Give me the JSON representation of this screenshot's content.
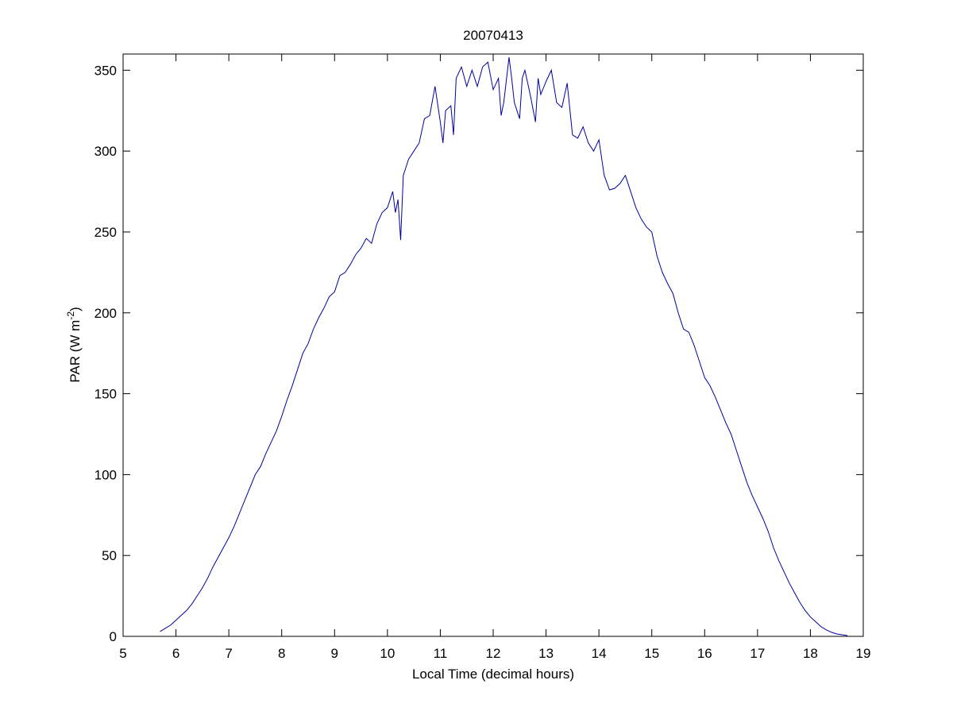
{
  "chart_data": {
    "type": "line",
    "title": "20070413",
    "xlabel": "Local Time (decimal hours)",
    "ylabel": [
      "PAR (W m",
      "-2",
      ")"
    ],
    "color": "#0000a0",
    "xlim": [
      5,
      19
    ],
    "xticks": [
      5,
      6,
      7,
      8,
      9,
      10,
      11,
      12,
      13,
      14,
      15,
      16,
      17,
      18,
      19
    ],
    "ylim": [
      0,
      360
    ],
    "yticks": [
      0,
      50,
      100,
      150,
      200,
      250,
      300,
      350
    ],
    "x": [
      5.7,
      5.8,
      5.9,
      6.0,
      6.1,
      6.2,
      6.3,
      6.4,
      6.5,
      6.6,
      6.7,
      6.8,
      6.9,
      7.0,
      7.1,
      7.2,
      7.3,
      7.4,
      7.5,
      7.6,
      7.7,
      7.8,
      7.9,
      8.0,
      8.1,
      8.2,
      8.3,
      8.4,
      8.5,
      8.6,
      8.7,
      8.8,
      8.9,
      9.0,
      9.1,
      9.2,
      9.3,
      9.4,
      9.5,
      9.6,
      9.7,
      9.8,
      9.9,
      10.0,
      10.1,
      10.15,
      10.2,
      10.25,
      10.3,
      10.4,
      10.5,
      10.6,
      10.7,
      10.8,
      10.9,
      11.0,
      11.05,
      11.1,
      11.2,
      11.25,
      11.3,
      11.4,
      11.5,
      11.6,
      11.7,
      11.8,
      11.9,
      12.0,
      12.1,
      12.15,
      12.2,
      12.3,
      12.35,
      12.4,
      12.5,
      12.55,
      12.6,
      12.7,
      12.8,
      12.85,
      12.9,
      13.0,
      13.1,
      13.2,
      13.3,
      13.4,
      13.5,
      13.6,
      13.7,
      13.8,
      13.9,
      14.0,
      14.1,
      14.2,
      14.3,
      14.4,
      14.5,
      14.6,
      14.7,
      14.8,
      14.9,
      15.0,
      15.1,
      15.2,
      15.3,
      15.4,
      15.5,
      15.6,
      15.7,
      15.8,
      15.9,
      16.0,
      16.1,
      16.2,
      16.3,
      16.4,
      16.5,
      16.6,
      16.7,
      16.8,
      16.9,
      17.0,
      17.1,
      17.2,
      17.3,
      17.4,
      17.5,
      17.6,
      17.7,
      17.8,
      17.9,
      18.0,
      18.1,
      18.2,
      18.3,
      18.4,
      18.5,
      18.6,
      18.7
    ],
    "values": [
      3,
      5,
      7,
      10,
      13,
      16,
      20,
      25,
      30,
      36,
      43,
      49,
      55,
      61,
      68,
      76,
      84,
      92,
      100,
      105,
      113,
      120,
      127,
      136,
      146,
      155,
      165,
      175,
      181,
      190,
      197,
      203,
      210,
      213,
      223,
      225,
      230,
      236,
      240,
      246,
      243,
      255,
      262,
      265,
      275,
      262,
      270,
      245,
      285,
      295,
      300,
      305,
      320,
      322,
      340,
      318,
      305,
      325,
      328,
      310,
      345,
      352,
      340,
      350,
      340,
      352,
      355,
      338,
      345,
      322,
      330,
      358,
      345,
      330,
      320,
      345,
      350,
      335,
      318,
      345,
      335,
      343,
      350,
      330,
      327,
      342,
      310,
      308,
      315,
      305,
      300,
      307,
      285,
      276,
      277,
      280,
      285,
      275,
      265,
      258,
      253,
      250,
      235,
      225,
      218,
      212,
      200,
      190,
      188,
      180,
      170,
      160,
      155,
      148,
      140,
      132,
      125,
      115,
      105,
      95,
      87,
      80,
      73,
      65,
      55,
      47,
      40,
      33,
      27,
      21,
      16,
      12,
      9,
      6,
      4,
      2.5,
      1.5,
      1,
      0.5
    ]
  }
}
